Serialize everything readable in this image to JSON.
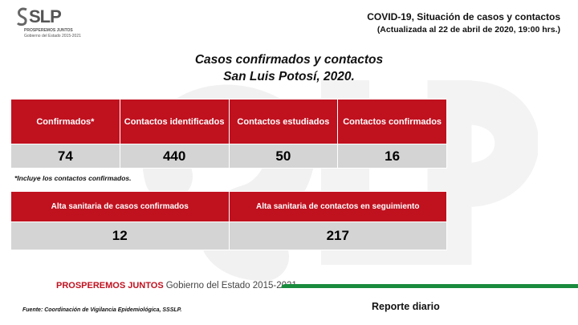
{
  "logo": {
    "mark": "SLP",
    "tagline": "PROSPEREMOS JUNTOS",
    "subtitle": "Gobierno del Estado 2015-2021"
  },
  "header": {
    "title": "COVID-19, Situación de casos y contactos",
    "subtitle": "(Actualizada al 22 de abril de 2020, 19:00 hrs.)"
  },
  "main_title": {
    "line1": "Casos confirmados y contactos",
    "line2": "San Luis Potosí, 2020."
  },
  "table1": {
    "headers": [
      "Confirmados*",
      "Contactos identificados",
      "Contactos estudiados",
      "Contactos confirmados"
    ],
    "values": [
      "74",
      "440",
      "50",
      "16"
    ]
  },
  "footnote": "*Incluye los contactos confirmados.",
  "table2": {
    "headers": [
      "Alta sanitaria de casos confirmados",
      "Alta sanitaria de contactos en seguimiento"
    ],
    "values": [
      "12",
      "217"
    ]
  },
  "footer": {
    "motto": "PROSPEREMOS JUNTOS",
    "government": "Gobierno del Estado 2015-2021",
    "source": "Fuente: Coordinación de Vigilancia Epidemiológica, SSSLP.",
    "report": "Reporte diario"
  },
  "colors": {
    "accent_red": "#c0111f",
    "cell_grey": "#d4d4d4",
    "green": "#1a8b3d"
  }
}
